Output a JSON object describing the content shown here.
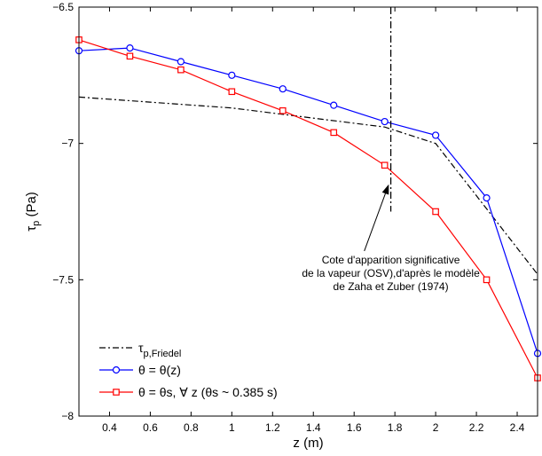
{
  "chart_data": {
    "type": "line",
    "title": "",
    "xlabel": "z (m)",
    "ylabel_main": "τ",
    "ylabel_sub": "p",
    "ylabel_unit": " (Pa)",
    "xlim": [
      0.25,
      2.5
    ],
    "ylim": [
      -8,
      -6.5
    ],
    "xticks": [
      0.4,
      0.6,
      0.8,
      1,
      1.2,
      1.4,
      1.6,
      1.8,
      2,
      2.2,
      2.4
    ],
    "xtick_labels": [
      "0.4",
      "0.6",
      "0.8",
      "1",
      "1.2",
      "1.4",
      "1.6",
      "1.8",
      "2",
      "2.2",
      "2.4"
    ],
    "yticks": [
      -8,
      -7.5,
      -7,
      -6.5
    ],
    "ytick_labels": [
      "−8",
      "−7.5",
      "−7",
      "−6.5"
    ],
    "grid": false,
    "legend_position": "bottom-left",
    "series": [
      {
        "legend_main": "τ",
        "legend_sub": "p,Friedel",
        "color": "#000000",
        "style": "dash-dot",
        "marker": "none",
        "x": [
          0.25,
          1.0,
          1.75,
          2.0,
          2.25,
          2.5
        ],
        "y": [
          -6.83,
          -6.87,
          -6.94,
          -7.0,
          -7.24,
          -7.48
        ]
      },
      {
        "legend": "θ = θ(z)",
        "color": "#0000ff",
        "style": "solid",
        "marker": "circle",
        "x": [
          0.25,
          0.5,
          0.75,
          1.0,
          1.25,
          1.5,
          1.75,
          2.0,
          2.25,
          2.5
        ],
        "y": [
          -6.66,
          -6.65,
          -6.7,
          -6.75,
          -6.8,
          -6.86,
          -6.92,
          -6.97,
          -7.2,
          -7.77
        ]
      },
      {
        "legend": "θ = θs, ∀ z (θs ~ 0.385 s)",
        "color": "#ff0000",
        "style": "solid",
        "marker": "square",
        "x": [
          0.25,
          0.5,
          0.75,
          1.0,
          1.25,
          1.5,
          1.75,
          2.0,
          2.25,
          2.5
        ],
        "y": [
          -6.62,
          -6.68,
          -6.73,
          -6.81,
          -6.88,
          -6.96,
          -7.08,
          -7.25,
          -7.5,
          -7.86
        ]
      }
    ],
    "vertical_line": {
      "x": 1.78,
      "y_range": [
        -7.25,
        -6.5
      ],
      "style": "dash-dot",
      "color": "#000000"
    },
    "annotation": {
      "lines": [
        "Cote d'apparition significative",
        "de la vapeur (OSV),d'après le modèle",
        "de Zaha et Zuber (1974)"
      ],
      "text_x": 1.78,
      "text_y": -7.44,
      "arrow_to": [
        1.77,
        -7.15
      ]
    }
  }
}
